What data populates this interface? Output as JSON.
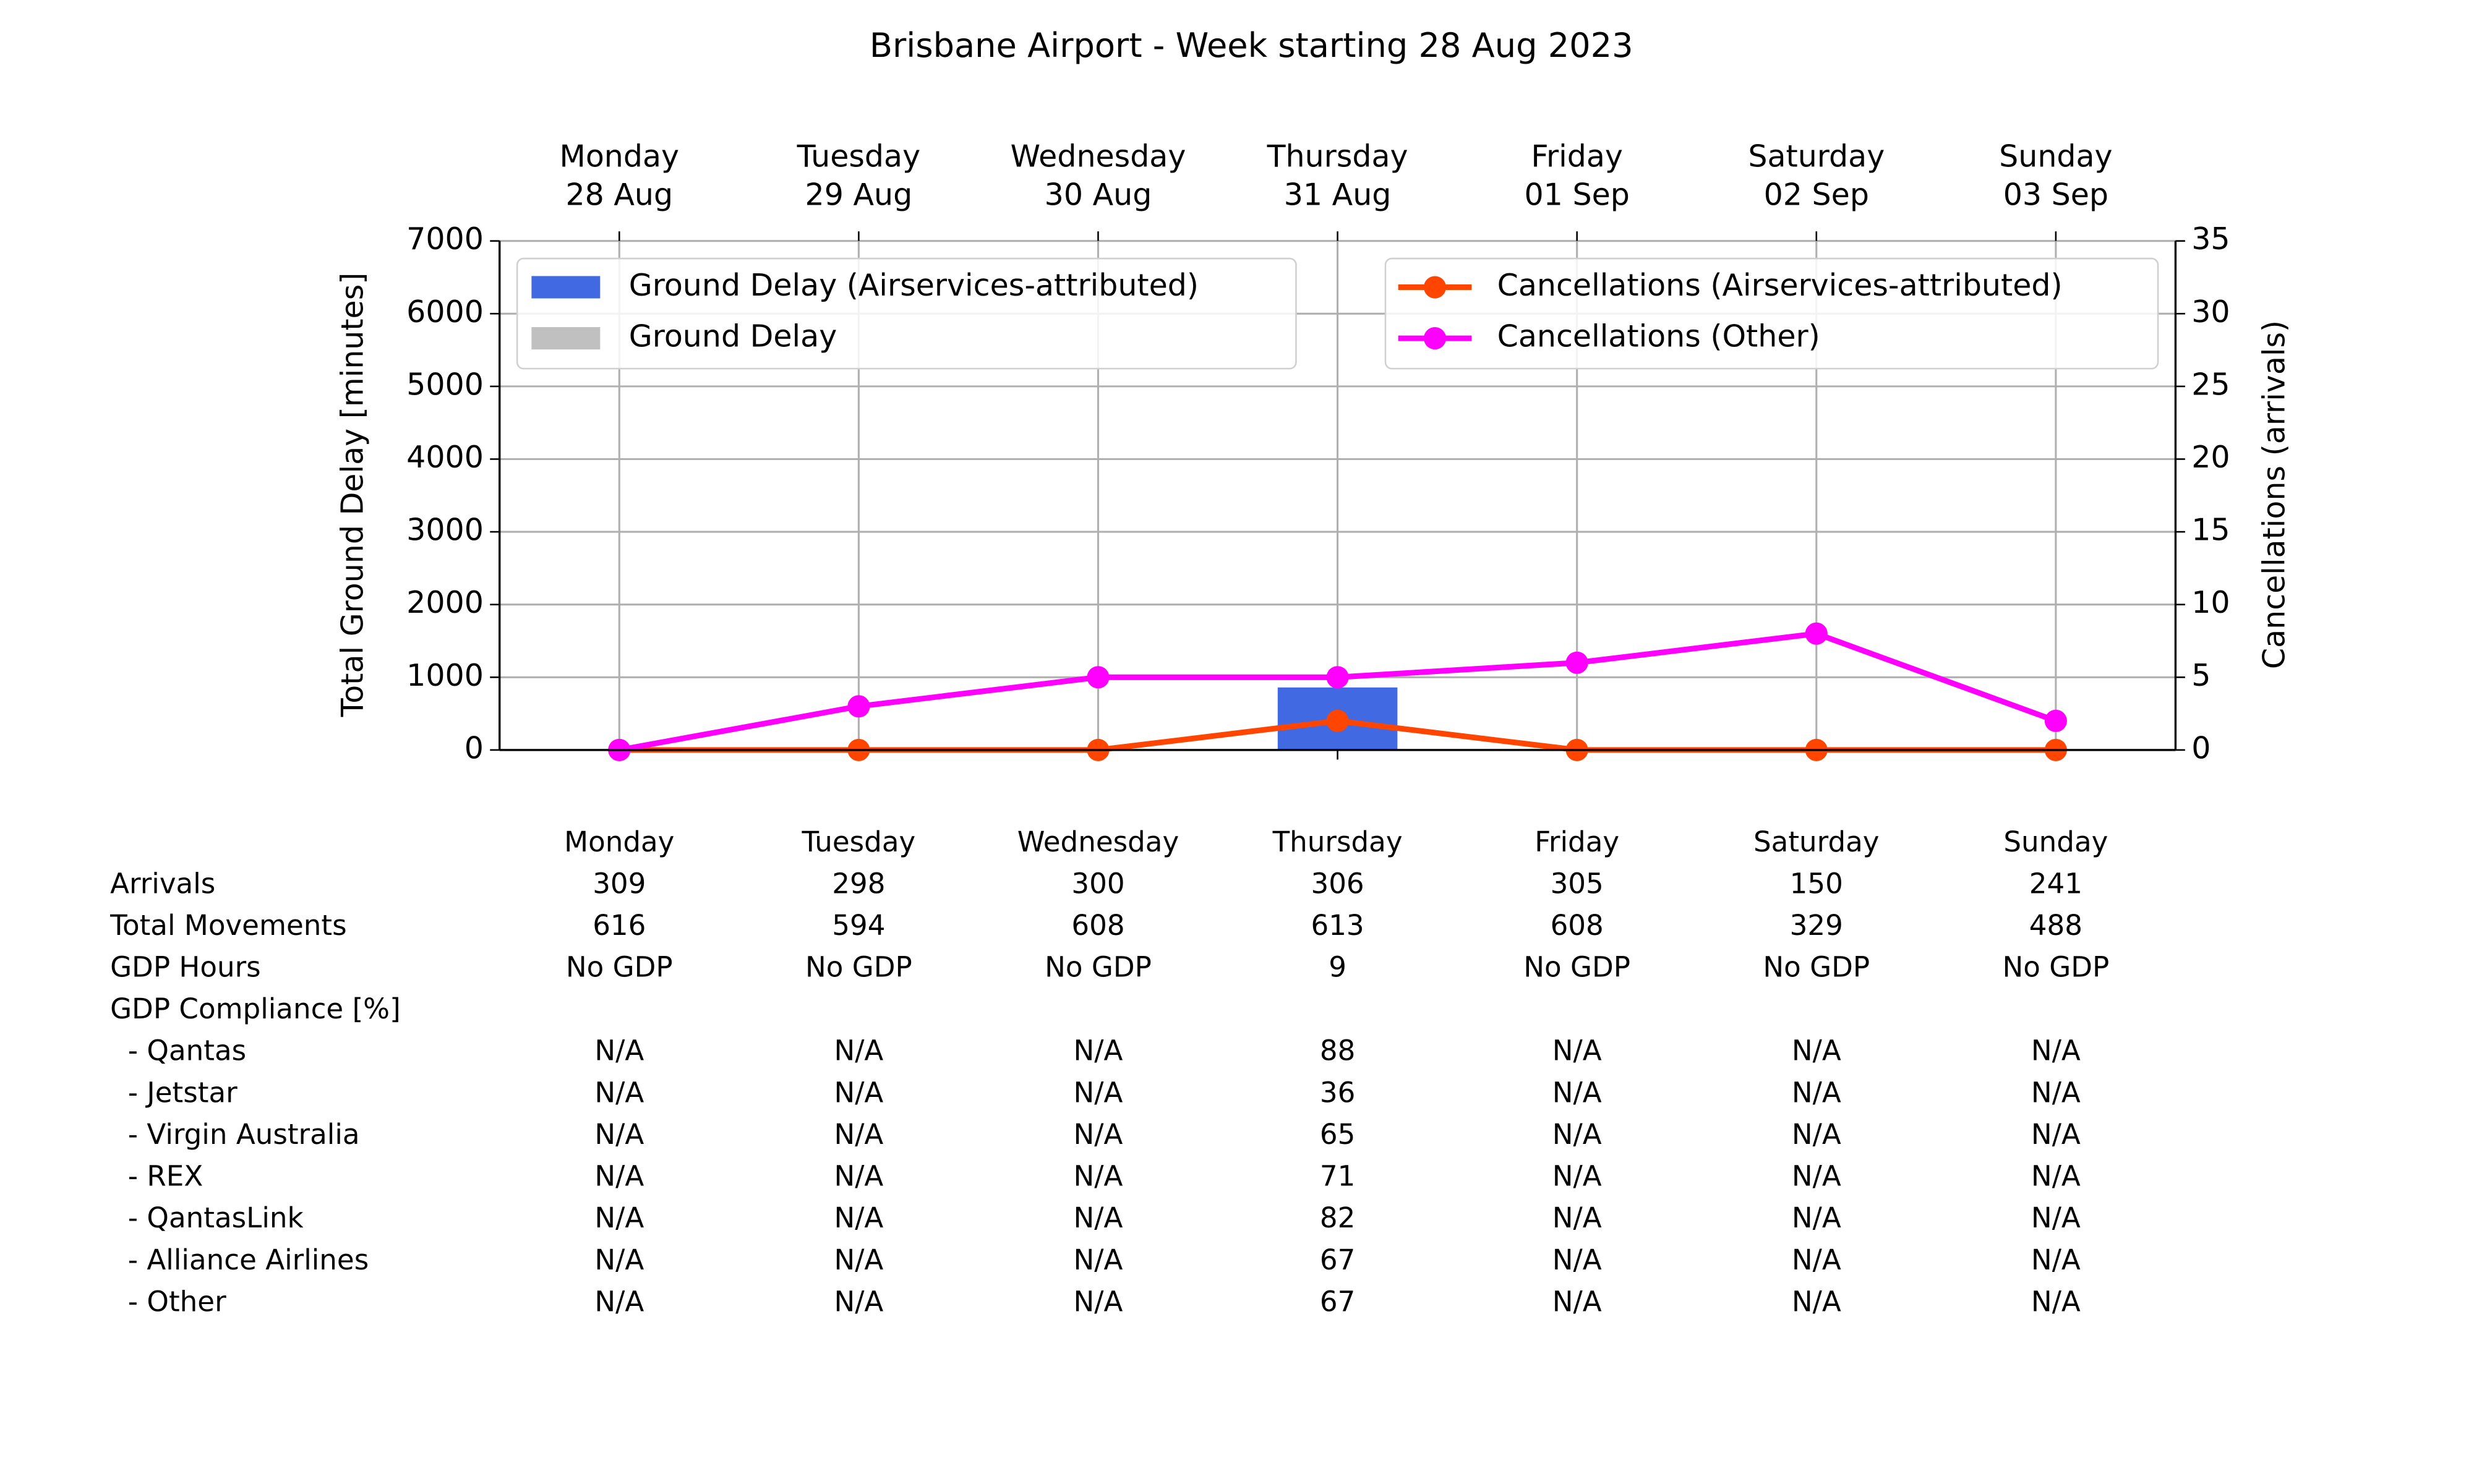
{
  "chart_data": {
    "type": "combo",
    "title": "Brisbane Airport - Week starting 28 Aug 2023",
    "categories": [
      "Monday\n28 Aug",
      "Tuesday\n29 Aug",
      "Wednesday\n30 Aug",
      "Thursday\n31 Aug",
      "Friday\n01 Sep",
      "Saturday\n02 Sep",
      "Sunday\n03 Sep"
    ],
    "y_label": "Total Ground Delay [minutes]",
    "y2_label": "Cancellations (arrivals)",
    "ylim": [
      0,
      7000
    ],
    "yticks": [
      0,
      1000,
      2000,
      3000,
      4000,
      5000,
      6000,
      7000
    ],
    "y2lim": [
      0,
      35
    ],
    "y2ticks": [
      0,
      5,
      10,
      15,
      20,
      25,
      30,
      35
    ],
    "grid": true,
    "series": [
      {
        "name": "Ground Delay (Airservices-attributed)",
        "type": "bar",
        "color": "#4169e1",
        "values": [
          0,
          0,
          0,
          860,
          0,
          0,
          0
        ]
      },
      {
        "name": "Ground Delay",
        "type": "bar",
        "color": "#c0c0c0",
        "values": [
          0,
          0,
          0,
          0,
          0,
          0,
          0
        ]
      },
      {
        "name": "Cancellations (Airservices-attributed)",
        "type": "line",
        "axis": "y2",
        "color": "#ff4500",
        "values": [
          0,
          0,
          0,
          2,
          0,
          0,
          0
        ]
      },
      {
        "name": "Cancellations (Other)",
        "type": "line",
        "axis": "y2",
        "color": "#ff00ff",
        "values": [
          0,
          3,
          5,
          5,
          6,
          8,
          2
        ]
      }
    ]
  },
  "table": {
    "header": [
      "Monday",
      "Tuesday",
      "Wednesday",
      "Thursday",
      "Friday",
      "Saturday",
      "Sunday"
    ],
    "rows": [
      {
        "label": "Arrivals",
        "values": [
          309,
          298,
          300,
          306,
          305,
          150,
          241
        ]
      },
      {
        "label": "Total Movements",
        "values": [
          616,
          594,
          608,
          613,
          608,
          329,
          488
        ]
      },
      {
        "label": "GDP Hours",
        "values": [
          "No GDP",
          "No GDP",
          "No GDP",
          9,
          "No GDP",
          "No GDP",
          "No GDP"
        ]
      },
      {
        "label": "GDP Compliance [%]",
        "values": []
      },
      {
        "label": "  - Qantas",
        "values": [
          "N/A",
          "N/A",
          "N/A",
          88,
          "N/A",
          "N/A",
          "N/A"
        ]
      },
      {
        "label": "  - Jetstar",
        "values": [
          "N/A",
          "N/A",
          "N/A",
          36,
          "N/A",
          "N/A",
          "N/A"
        ]
      },
      {
        "label": "  - Virgin Australia",
        "values": [
          "N/A",
          "N/A",
          "N/A",
          65,
          "N/A",
          "N/A",
          "N/A"
        ]
      },
      {
        "label": "  - REX",
        "values": [
          "N/A",
          "N/A",
          "N/A",
          71,
          "N/A",
          "N/A",
          "N/A"
        ]
      },
      {
        "label": "  - QantasLink",
        "values": [
          "N/A",
          "N/A",
          "N/A",
          82,
          "N/A",
          "N/A",
          "N/A"
        ]
      },
      {
        "label": "  - Alliance Airlines",
        "values": [
          "N/A",
          "N/A",
          "N/A",
          67,
          "N/A",
          "N/A",
          "N/A"
        ]
      },
      {
        "label": "  - Other",
        "values": [
          "N/A",
          "N/A",
          "N/A",
          67,
          "N/A",
          "N/A",
          "N/A"
        ]
      }
    ]
  }
}
